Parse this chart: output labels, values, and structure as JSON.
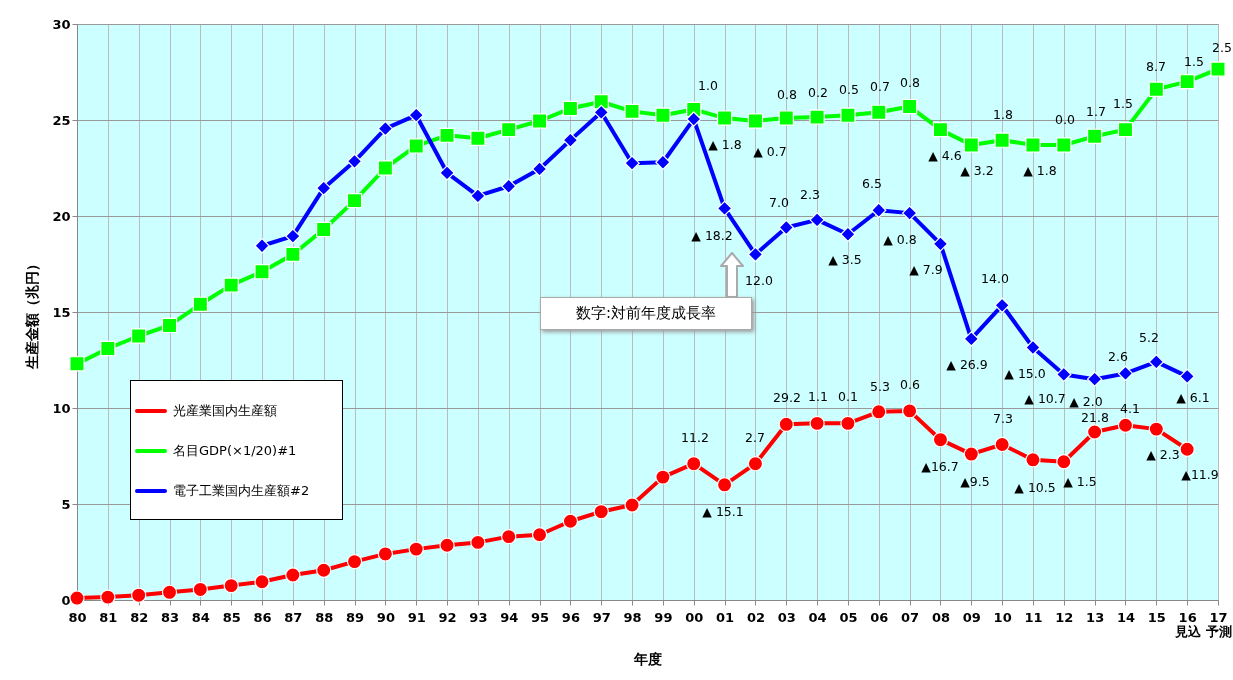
{
  "chart_data": {
    "type": "line",
    "xlabel": "年度",
    "ylabel": "生産金額（兆円）",
    "categories": [
      "80",
      "81",
      "82",
      "83",
      "84",
      "85",
      "86",
      "87",
      "88",
      "89",
      "90",
      "91",
      "92",
      "93",
      "94",
      "95",
      "96",
      "97",
      "98",
      "99",
      "00",
      "01",
      "02",
      "03",
      "04",
      "05",
      "06",
      "07",
      "08",
      "09",
      "10",
      "11",
      "12",
      "13",
      "14",
      "15",
      "16\n見込",
      "17\n予測"
    ],
    "ylim": [
      0,
      30
    ],
    "yticks": [
      0,
      5,
      10,
      15,
      20,
      25,
      30
    ],
    "grid": true,
    "legend": "left",
    "line_style": "solid",
    "series": [
      {
        "name": "光産業国内生産額",
        "color": "#ff0000",
        "marker": "circle",
        "values": [
          0.1,
          0.15,
          0.25,
          0.4,
          0.55,
          0.75,
          0.95,
          1.3,
          1.55,
          2.0,
          2.4,
          2.65,
          2.85,
          3.0,
          3.3,
          3.4,
          4.1,
          4.6,
          4.95,
          6.4,
          7.1,
          6.0,
          7.1,
          9.15,
          9.2,
          9.2,
          9.8,
          9.85,
          8.35,
          7.6,
          8.1,
          7.3,
          7.2,
          8.75,
          9.1,
          8.9,
          7.85,
          null
        ]
      },
      {
        "name": "名目GDP(×1/20)#1",
        "color": "#00ff00",
        "marker": "square",
        "values": [
          12.3,
          13.1,
          13.75,
          14.3,
          15.4,
          16.4,
          17.1,
          18.0,
          19.3,
          20.8,
          22.5,
          23.65,
          24.2,
          24.05,
          24.5,
          24.95,
          25.6,
          25.95,
          25.45,
          25.25,
          25.55,
          25.1,
          24.95,
          25.1,
          25.15,
          25.25,
          25.4,
          25.7,
          24.5,
          23.7,
          23.95,
          23.7,
          23.7,
          24.15,
          24.5,
          26.6,
          27.0,
          27.65
        ]
      },
      {
        "name": "電子工業国内生産額#2",
        "color": "#0000ff",
        "marker": "diamond",
        "values": [
          null,
          null,
          null,
          null,
          null,
          null,
          18.45,
          18.95,
          21.45,
          22.85,
          24.55,
          25.25,
          22.25,
          21.05,
          21.55,
          22.45,
          23.95,
          25.4,
          22.75,
          22.8,
          25.05,
          20.4,
          18.0,
          19.4,
          19.8,
          19.05,
          20.3,
          20.15,
          18.55,
          13.6,
          15.35,
          13.15,
          11.75,
          11.5,
          11.8,
          12.4,
          11.65,
          null
        ]
      }
    ],
    "annotations": [
      "数字:対前年度成長率",
      "11.2",
      "▲ 15.1",
      "2.7",
      "29.2",
      "1.1",
      "0.1",
      "5.3",
      "0.6",
      "▲16.7",
      "▲9.5",
      "7.3",
      "▲ 10.5",
      "▲ 1.5",
      "21.8",
      "4.1",
      "▲ 2.3",
      "▲11.9",
      "▲ 18.2",
      "12.0",
      "7.0",
      "2.3",
      "▲ 3.5",
      "6.5",
      "▲ 0.8",
      "▲ 7.9",
      "▲ 26.9",
      "14.0",
      "▲ 15.0",
      "▲ 10.7",
      "▲ 2.0",
      "2.6",
      "5.2",
      "▲ 6.1",
      "1.0",
      "▲ 1.8",
      "▲ 0.7",
      "0.8",
      "0.2",
      "0.5",
      "0.7",
      "0.8",
      "▲ 4.6",
      "▲ 3.2",
      "1.8",
      "▲ 1.8",
      "0.0",
      "1.7",
      "1.5",
      "8.7",
      "1.5",
      "2.5"
    ]
  }
}
